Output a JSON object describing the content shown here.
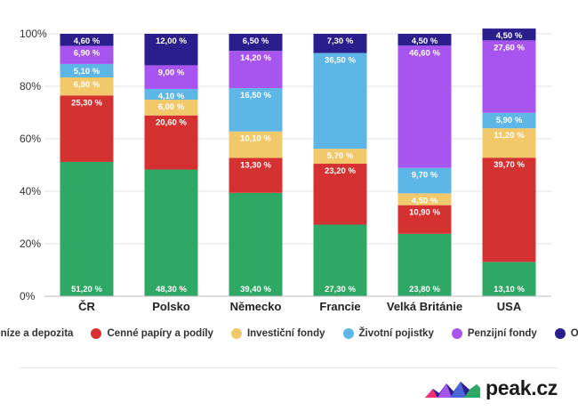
{
  "chart_data": {
    "type": "bar",
    "stacked": true,
    "categories": [
      "ČR",
      "Polsko",
      "Německo",
      "Francie",
      "Velká Británie",
      "USA"
    ],
    "y_ticks": [
      "0%",
      "20%",
      "40%",
      "60%",
      "80%",
      "100%"
    ],
    "y_tick_values": [
      0,
      20,
      40,
      60,
      80,
      100
    ],
    "ylim": [
      0,
      100
    ],
    "grid": true,
    "legend_position": "bottom",
    "series": [
      {
        "name": "Peníze a depozita",
        "color": "#2fa866",
        "values": [
          51.2,
          48.3,
          39.4,
          27.3,
          23.8,
          13.1
        ],
        "labels": [
          "51,20 %",
          "48,30 %",
          "39,40 %",
          "27,30 %",
          "23,80 %",
          "13,10 %"
        ]
      },
      {
        "name": "Cenné papíry a podíly",
        "color": "#d63131",
        "values": [
          25.3,
          20.6,
          13.3,
          23.2,
          10.9,
          39.7
        ],
        "labels": [
          "25,30 %",
          "20,60 %",
          "13,30 %",
          "23,20 %",
          "10,90 %",
          "39,70 %"
        ]
      },
      {
        "name": "Investiční fondy",
        "color": "#f1c86a",
        "values": [
          6.9,
          6.0,
          10.1,
          5.7,
          4.5,
          11.2
        ],
        "labels": [
          "6,90 %",
          "6,00 %",
          "10,10 %",
          "5,70 %",
          "4,50 %",
          "11,20 %"
        ]
      },
      {
        "name": "Životní pojistky",
        "color": "#5eb6e6",
        "values": [
          5.1,
          4.1,
          16.5,
          36.5,
          9.7,
          5.9
        ],
        "labels": [
          "5,10 %",
          "4,10 %",
          "16,50 %",
          "36,50 %",
          "9,70 %",
          "5,90 %"
        ]
      },
      {
        "name": "Penzijní fondy",
        "color": "#a855f0",
        "values": [
          6.9,
          9.0,
          14.2,
          0,
          46.6,
          27.6
        ],
        "labels": [
          "6,90 %",
          "9,00 %",
          "14,20 %",
          "",
          "46,60 %",
          "27,60 %"
        ]
      },
      {
        "name": "Ostatní",
        "color": "#2a1d8c",
        "values": [
          4.6,
          12.0,
          6.5,
          7.3,
          4.5,
          4.5
        ],
        "labels": [
          "4,60 %",
          "12,00 %",
          "6,50 %",
          "7,30 %",
          "4,50 %",
          "4,50 %"
        ]
      }
    ]
  },
  "brand": {
    "name": "peak.cz"
  }
}
